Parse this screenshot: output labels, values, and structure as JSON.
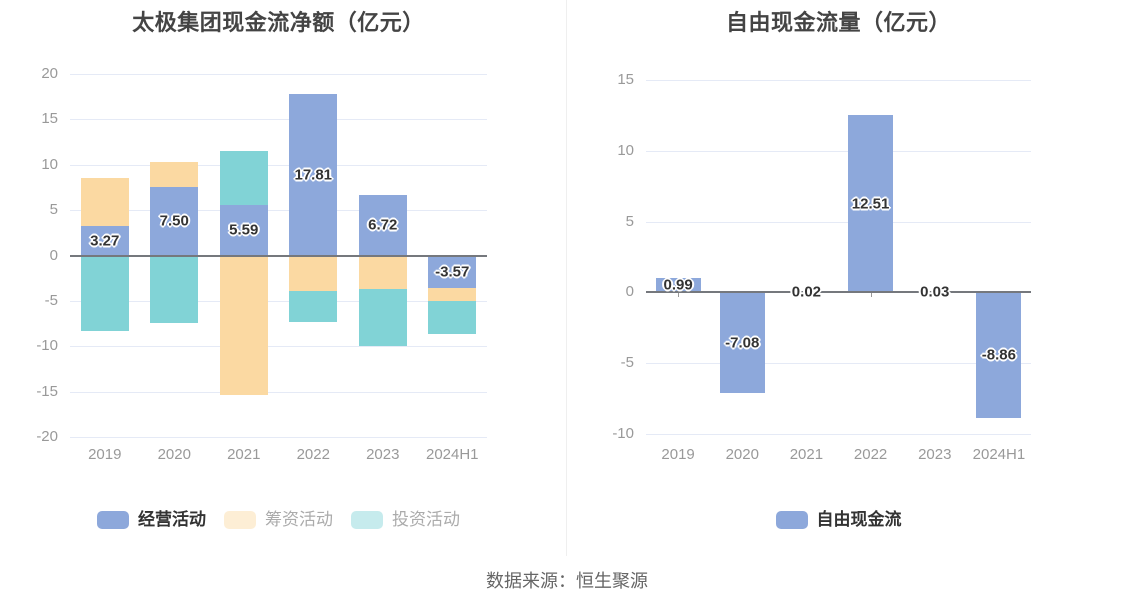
{
  "chart_data": [
    {
      "type": "bar",
      "stacked": true,
      "title": "太极集团现金流净额（亿元）",
      "categories": [
        "2019",
        "2020",
        "2021",
        "2022",
        "2023",
        "2024H1"
      ],
      "y_ticks": [
        20,
        15,
        10,
        5,
        0,
        -5,
        -10,
        -15,
        -20
      ],
      "ylim": [
        -20,
        20
      ],
      "grid": true,
      "legend_position": "bottom",
      "series": [
        {
          "name": "经营活动",
          "color": "#8DA8DB",
          "values": [
            3.27,
            7.5,
            5.59,
            17.81,
            6.72,
            -3.57
          ],
          "labels": [
            "3.27",
            "7.50",
            "5.59",
            "17.81",
            "6.72",
            "-3.57"
          ],
          "show_labels": true,
          "legend_muted": false
        },
        {
          "name": "筹资活动",
          "color": "#FBD9A2",
          "values": [
            5.3,
            2.8,
            -15.4,
            -3.95,
            -3.65,
            -1.45
          ],
          "show_labels": false,
          "legend_muted": true
        },
        {
          "name": "投资活动",
          "color": "#81D3D6",
          "values": [
            -8.3,
            -7.4,
            5.97,
            -3.4,
            -6.3,
            -3.65
          ],
          "show_labels": false,
          "legend_muted": true
        }
      ]
    },
    {
      "type": "bar",
      "stacked": false,
      "title": "自由现金流量（亿元）",
      "categories": [
        "2019",
        "2020",
        "2021",
        "2022",
        "2023",
        "2024H1"
      ],
      "y_ticks": [
        15,
        10,
        5,
        0,
        -5,
        -10
      ],
      "ylim": [
        -10,
        15
      ],
      "grid": true,
      "legend_position": "bottom",
      "series": [
        {
          "name": "自由现金流",
          "color": "#8DA8DB",
          "values": [
            0.99,
            -7.08,
            0.02,
            12.51,
            0.03,
            -8.86
          ],
          "labels": [
            "0.99",
            "-7.08",
            "0.02",
            "12.51",
            "0.03",
            "-8.86"
          ],
          "show_labels": true,
          "legend_muted": false
        }
      ]
    }
  ],
  "footer": {
    "source": "数据来源：恒生聚源"
  },
  "style": {
    "grid_line": "#E5EAF6",
    "zero_line": "#75787D",
    "axis_label": "#999999",
    "value_label": "#333333",
    "title": "#444444",
    "footer_text": "#666666",
    "background": "#FFFFFF"
  }
}
